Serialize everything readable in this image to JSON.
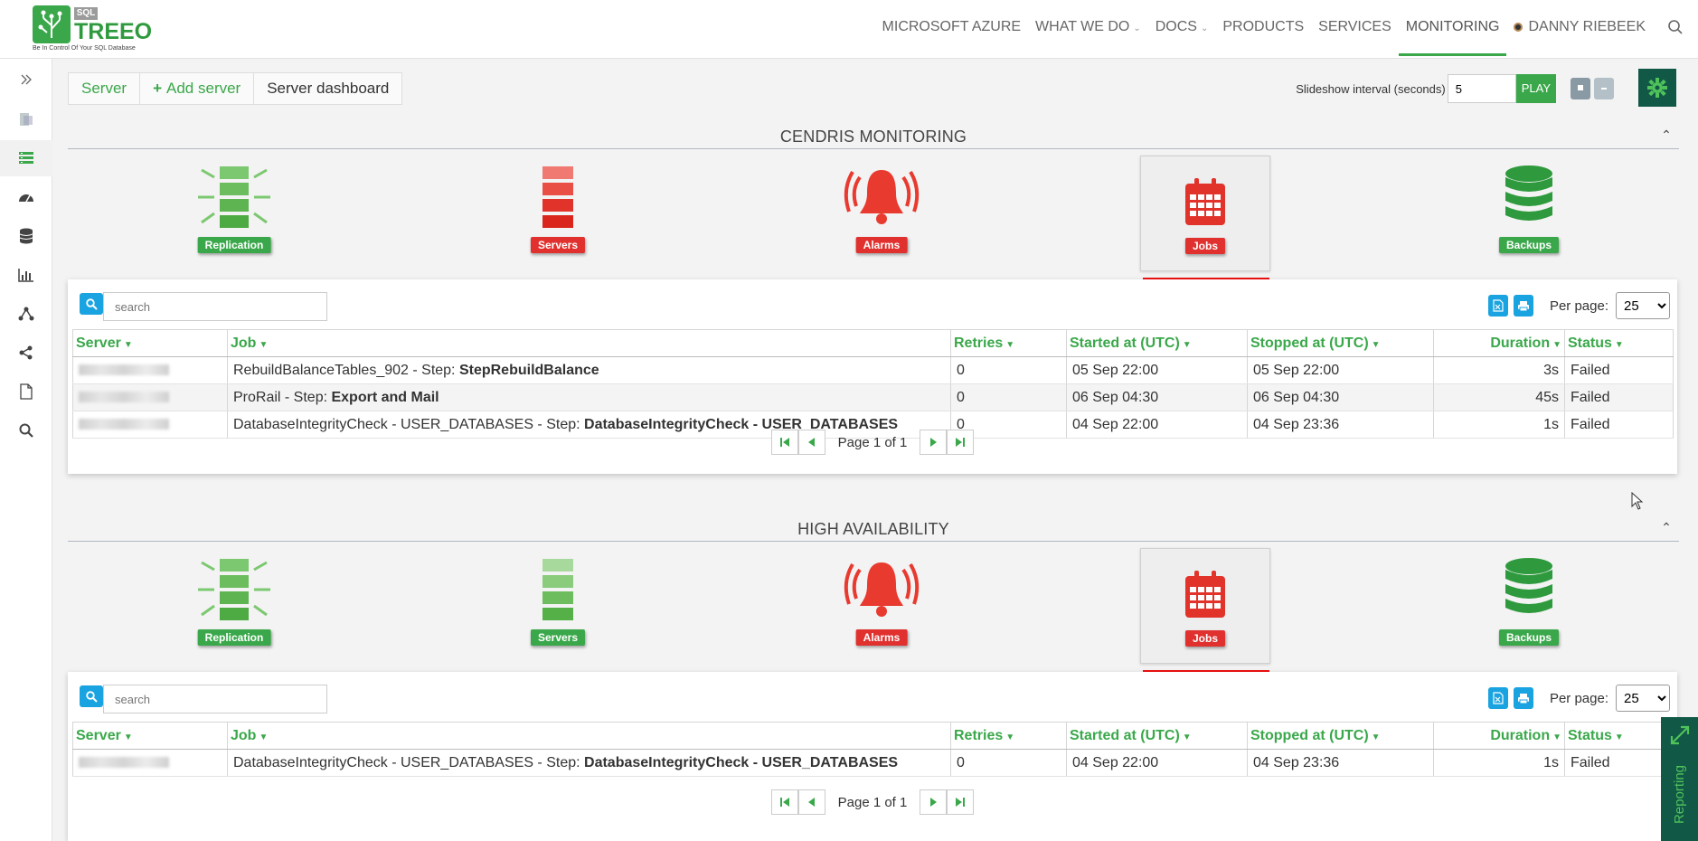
{
  "nav": {
    "brand_sql": "SQL",
    "brand_name": "TREEO",
    "brand_tagline": "Be In Control Of Your SQL Database",
    "items": [
      {
        "label": "MICROSOFT AZURE",
        "has_dropdown": false,
        "active": false
      },
      {
        "label": "WHAT WE DO",
        "has_dropdown": true,
        "active": false
      },
      {
        "label": "DOCS",
        "has_dropdown": true,
        "active": false
      },
      {
        "label": "PRODUCTS",
        "has_dropdown": false,
        "active": false
      },
      {
        "label": "SERVICES",
        "has_dropdown": false,
        "active": false
      },
      {
        "label": "MONITORING",
        "has_dropdown": false,
        "active": true
      },
      {
        "label": "DANNY RIEBEEK",
        "has_dropdown": false,
        "active": false
      }
    ]
  },
  "sidebar": {
    "icons": [
      "expand-icon",
      "server-list-icon",
      "dashboard-icon",
      "speedometer-icon",
      "database-icon",
      "bar-chart-icon",
      "topology-icon",
      "share-icon",
      "document-icon",
      "search-icon"
    ],
    "active_index": 2
  },
  "toolbar": {
    "crumb_server": "Server",
    "crumb_add": "Add server",
    "crumb_current": "Server dashboard",
    "slideshow_label": "Slideshow interval (seconds)",
    "slideshow_value": "5",
    "play_label": "PLAY"
  },
  "sections": [
    {
      "title": "CENDRIS MONITORING",
      "tiles": [
        {
          "label": "Replication",
          "status": "green",
          "icon": "replication-icon"
        },
        {
          "label": "Servers",
          "status": "red",
          "icon": "server-stack-icon"
        },
        {
          "label": "Alarms",
          "status": "red",
          "icon": "alarm-bell-icon"
        },
        {
          "label": "Jobs",
          "status": "red",
          "icon": "calendar-icon",
          "selected": true
        },
        {
          "label": "Backups",
          "status": "green",
          "icon": "database-stack-icon"
        }
      ],
      "search_placeholder": "search",
      "per_page_label": "Per page:",
      "per_page_value": "25",
      "rows": [
        {
          "job": "RebuildBalanceTables_902 - Step: ",
          "step": "StepRebuildBalance",
          "retries": "0",
          "started": "05 Sep 22:00",
          "stopped": "05 Sep 22:00",
          "duration": "3s",
          "status": "Failed"
        },
        {
          "job": "ProRail - Step: ",
          "step": "Export and Mail",
          "retries": "0",
          "started": "06 Sep 04:30",
          "stopped": "06 Sep 04:30",
          "duration": "45s",
          "status": "Failed"
        },
        {
          "job": "DatabaseIntegrityCheck - USER_DATABASES - Step: ",
          "step": "DatabaseIntegrityCheck - USER_DATABASES",
          "retries": "0",
          "started": "04 Sep 22:00",
          "stopped": "04 Sep 23:36",
          "duration": "1s",
          "status": "Failed"
        }
      ],
      "pager": "Page 1 of 1"
    },
    {
      "title": "HIGH AVAILABILITY",
      "tiles": [
        {
          "label": "Replication",
          "status": "green",
          "icon": "replication-icon"
        },
        {
          "label": "Servers",
          "status": "green",
          "icon": "server-stack-icon"
        },
        {
          "label": "Alarms",
          "status": "red",
          "icon": "alarm-bell-icon"
        },
        {
          "label": "Jobs",
          "status": "red",
          "icon": "calendar-icon",
          "selected": true
        },
        {
          "label": "Backups",
          "status": "green",
          "icon": "database-stack-icon"
        }
      ],
      "search_placeholder": "search",
      "per_page_label": "Per page:",
      "per_page_value": "25",
      "rows": [
        {
          "job": "DatabaseIntegrityCheck - USER_DATABASES - Step: ",
          "step": "DatabaseIntegrityCheck - USER_DATABASES",
          "retries": "0",
          "started": "04 Sep 22:00",
          "stopped": "04 Sep 23:36",
          "duration": "1s",
          "status": "Failed"
        }
      ],
      "pager": "Page 1 of 1"
    }
  ],
  "columns": [
    "Server",
    "Job",
    "Retries",
    "Started at (UTC)",
    "Stopped at (UTC)",
    "Duration",
    "Status"
  ],
  "reporting_label": "Reporting",
  "colors": {
    "green": "#3aa84a",
    "red": "#e0312f",
    "dark_green": "#115846",
    "blue": "#19a3e0"
  }
}
